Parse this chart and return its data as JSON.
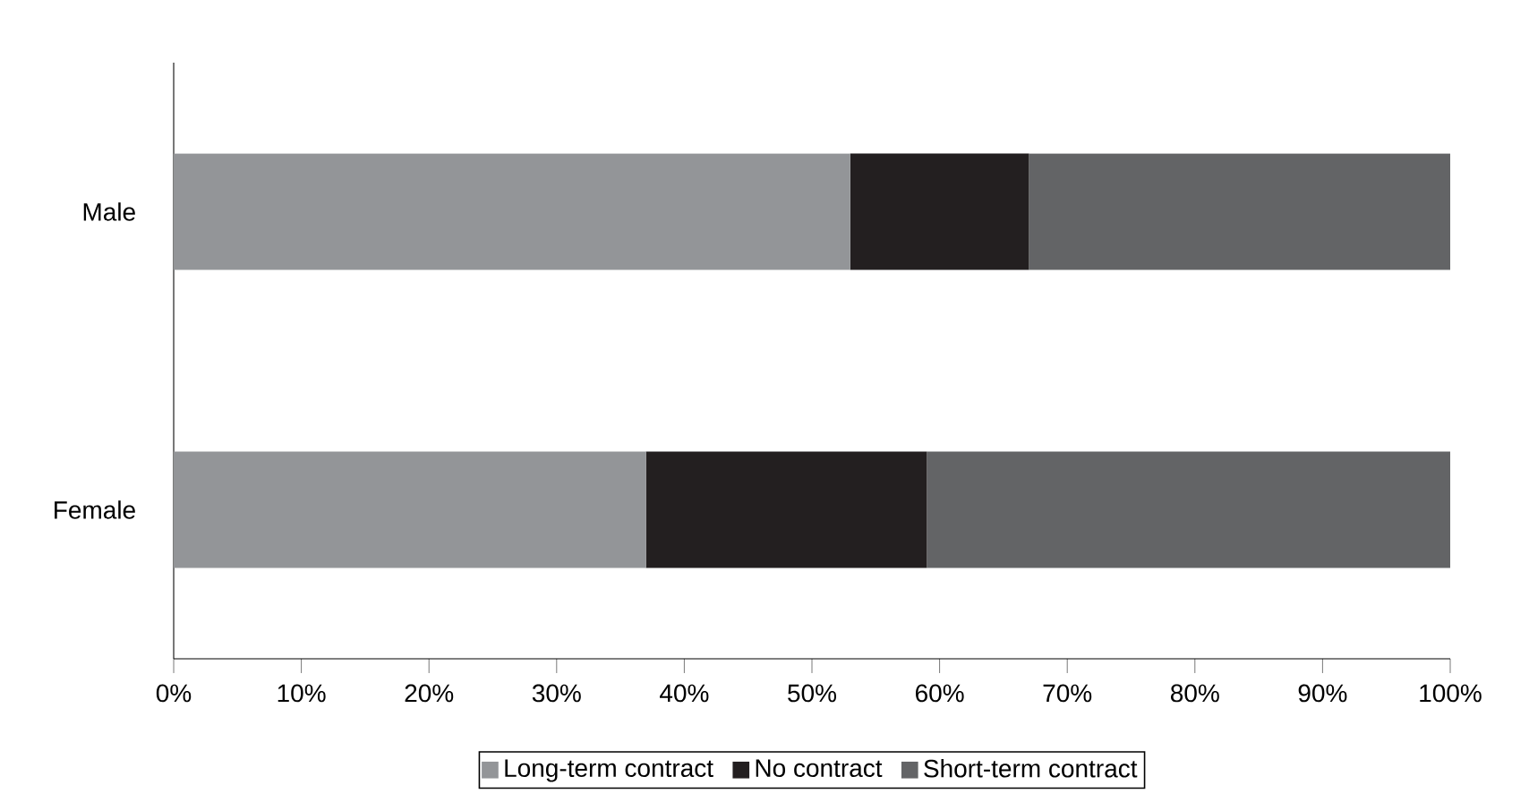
{
  "chart_data": {
    "type": "bar",
    "orientation": "horizontal",
    "stacked": true,
    "categories": [
      "Male",
      "Female"
    ],
    "series": [
      {
        "name": "Long-term contract",
        "color": "#939598",
        "values": [
          53,
          37
        ]
      },
      {
        "name": "No contract",
        "color": "#231f20",
        "values": [
          14,
          22
        ]
      },
      {
        "name": "Short-term contract",
        "color": "#636466",
        "values": [
          33,
          41
        ]
      }
    ],
    "xlim": [
      0,
      100
    ],
    "xticks": [
      {
        "value": 0,
        "label": "0%"
      },
      {
        "value": 10,
        "label": "10%"
      },
      {
        "value": 20,
        "label": "20%"
      },
      {
        "value": 30,
        "label": "30%"
      },
      {
        "value": 40,
        "label": "40%"
      },
      {
        "value": 50,
        "label": "50%"
      },
      {
        "value": 60,
        "label": "60%"
      },
      {
        "value": 70,
        "label": "70%"
      },
      {
        "value": 80,
        "label": "80%"
      },
      {
        "value": 90,
        "label": "90%"
      },
      {
        "value": 100,
        "label": "100%"
      }
    ],
    "legend": "bottom"
  }
}
